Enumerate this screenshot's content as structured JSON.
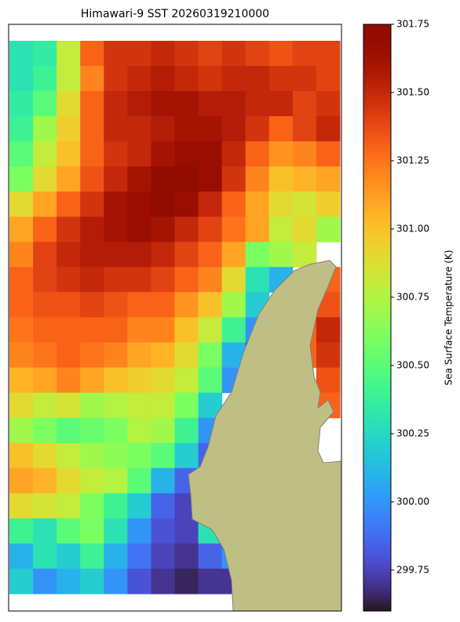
{
  "chart_data": {
    "type": "heatmap",
    "title": "Himawari-9 SST 20260319210000",
    "colorbar_label": "Sea Surface Temperature (K)",
    "colormap": "turbo",
    "clim": [
      299.6,
      301.75
    ],
    "cticks": [
      301.75,
      {
        "value": 301.5,
        "label": "301.50"
      },
      301.25,
      {
        "value": 301.0,
        "label": "301.00"
      },
      300.75,
      {
        "value": 300.5,
        "label": "300.50"
      },
      300.25,
      {
        "value": 300.0,
        "label": "300.00"
      },
      299.75
    ],
    "values": [
      [
        300.3,
        300.35,
        300.8,
        301.3,
        301.45,
        301.45,
        301.5,
        301.45,
        301.4,
        301.45,
        301.4,
        301.35,
        301.4,
        301.4
      ],
      [
        300.3,
        300.4,
        300.8,
        301.2,
        301.45,
        301.5,
        301.55,
        301.5,
        301.45,
        301.5,
        301.5,
        301.45,
        301.45,
        301.4
      ],
      [
        300.35,
        300.5,
        300.9,
        301.3,
        301.5,
        301.55,
        301.6,
        301.6,
        301.55,
        301.55,
        301.5,
        301.5,
        301.4,
        301.45
      ],
      [
        300.4,
        300.7,
        300.95,
        301.3,
        301.5,
        301.5,
        301.55,
        301.6,
        301.6,
        301.55,
        301.45,
        301.3,
        301.4,
        301.5
      ],
      [
        300.5,
        300.8,
        301.0,
        301.3,
        301.45,
        301.5,
        301.6,
        301.65,
        301.65,
        301.5,
        301.3,
        301.15,
        301.2,
        301.3
      ],
      [
        300.6,
        300.9,
        301.1,
        301.35,
        301.5,
        301.6,
        301.7,
        301.7,
        301.65,
        301.45,
        301.2,
        301.0,
        301.05,
        301.1
      ],
      [
        300.9,
        301.1,
        301.3,
        301.45,
        301.6,
        301.65,
        301.7,
        301.65,
        301.5,
        301.3,
        301.1,
        300.9,
        300.85,
        300.95
      ],
      [
        301.1,
        301.3,
        301.45,
        301.55,
        301.6,
        301.65,
        301.6,
        301.5,
        301.4,
        301.25,
        301.1,
        300.8,
        300.9,
        300.7
      ],
      [
        301.2,
        301.4,
        301.5,
        301.55,
        301.55,
        301.55,
        301.5,
        301.4,
        301.3,
        301.1,
        300.6,
        300.7,
        300.8,
        null
      ],
      [
        301.3,
        301.4,
        301.45,
        301.5,
        301.45,
        301.45,
        301.4,
        301.3,
        301.2,
        300.9,
        300.3,
        300.1,
        null,
        301.3
      ],
      [
        301.3,
        301.35,
        301.35,
        301.4,
        301.35,
        301.3,
        301.3,
        301.15,
        301.0,
        300.7,
        300.2,
        null,
        null,
        301.35
      ],
      [
        301.25,
        301.3,
        301.3,
        301.3,
        301.3,
        301.2,
        301.2,
        301.0,
        300.8,
        300.4,
        300.0,
        null,
        301.3,
        301.5
      ],
      [
        301.2,
        301.25,
        301.3,
        301.25,
        301.2,
        301.1,
        301.05,
        300.9,
        300.6,
        300.1,
        299.8,
        null,
        301.3,
        301.45
      ],
      [
        301.05,
        301.1,
        301.2,
        301.1,
        301.0,
        300.95,
        300.9,
        300.8,
        300.5,
        300.0,
        null,
        null,
        null,
        301.35
      ],
      [
        300.9,
        300.8,
        300.85,
        300.7,
        300.75,
        300.8,
        300.8,
        300.6,
        300.2,
        null,
        null,
        null,
        null,
        301.3
      ],
      [
        300.7,
        300.6,
        300.5,
        300.55,
        300.6,
        300.75,
        300.7,
        300.4,
        300.0,
        null,
        null,
        null,
        null,
        null
      ],
      [
        301.0,
        300.9,
        300.8,
        300.7,
        300.65,
        300.6,
        300.5,
        300.2,
        299.85,
        null,
        null,
        null,
        null,
        null
      ],
      [
        301.1,
        301.05,
        300.9,
        300.8,
        300.75,
        300.5,
        300.1,
        299.85,
        null,
        null,
        null,
        null,
        null,
        null
      ],
      [
        300.9,
        300.85,
        300.8,
        300.6,
        300.4,
        300.2,
        299.85,
        299.75,
        null,
        null,
        null,
        null,
        null,
        null
      ],
      [
        300.4,
        300.3,
        300.5,
        300.6,
        300.3,
        300.0,
        299.8,
        299.75,
        300.3,
        null,
        null,
        null,
        null,
        null
      ],
      [
        300.1,
        300.3,
        300.2,
        300.4,
        300.1,
        299.9,
        299.75,
        299.7,
        299.85,
        300.0,
        null,
        null,
        null,
        null
      ],
      [
        300.2,
        300.0,
        300.1,
        300.2,
        300.0,
        299.8,
        299.7,
        299.65,
        299.7,
        299.7,
        null,
        null,
        null,
        null
      ]
    ]
  }
}
